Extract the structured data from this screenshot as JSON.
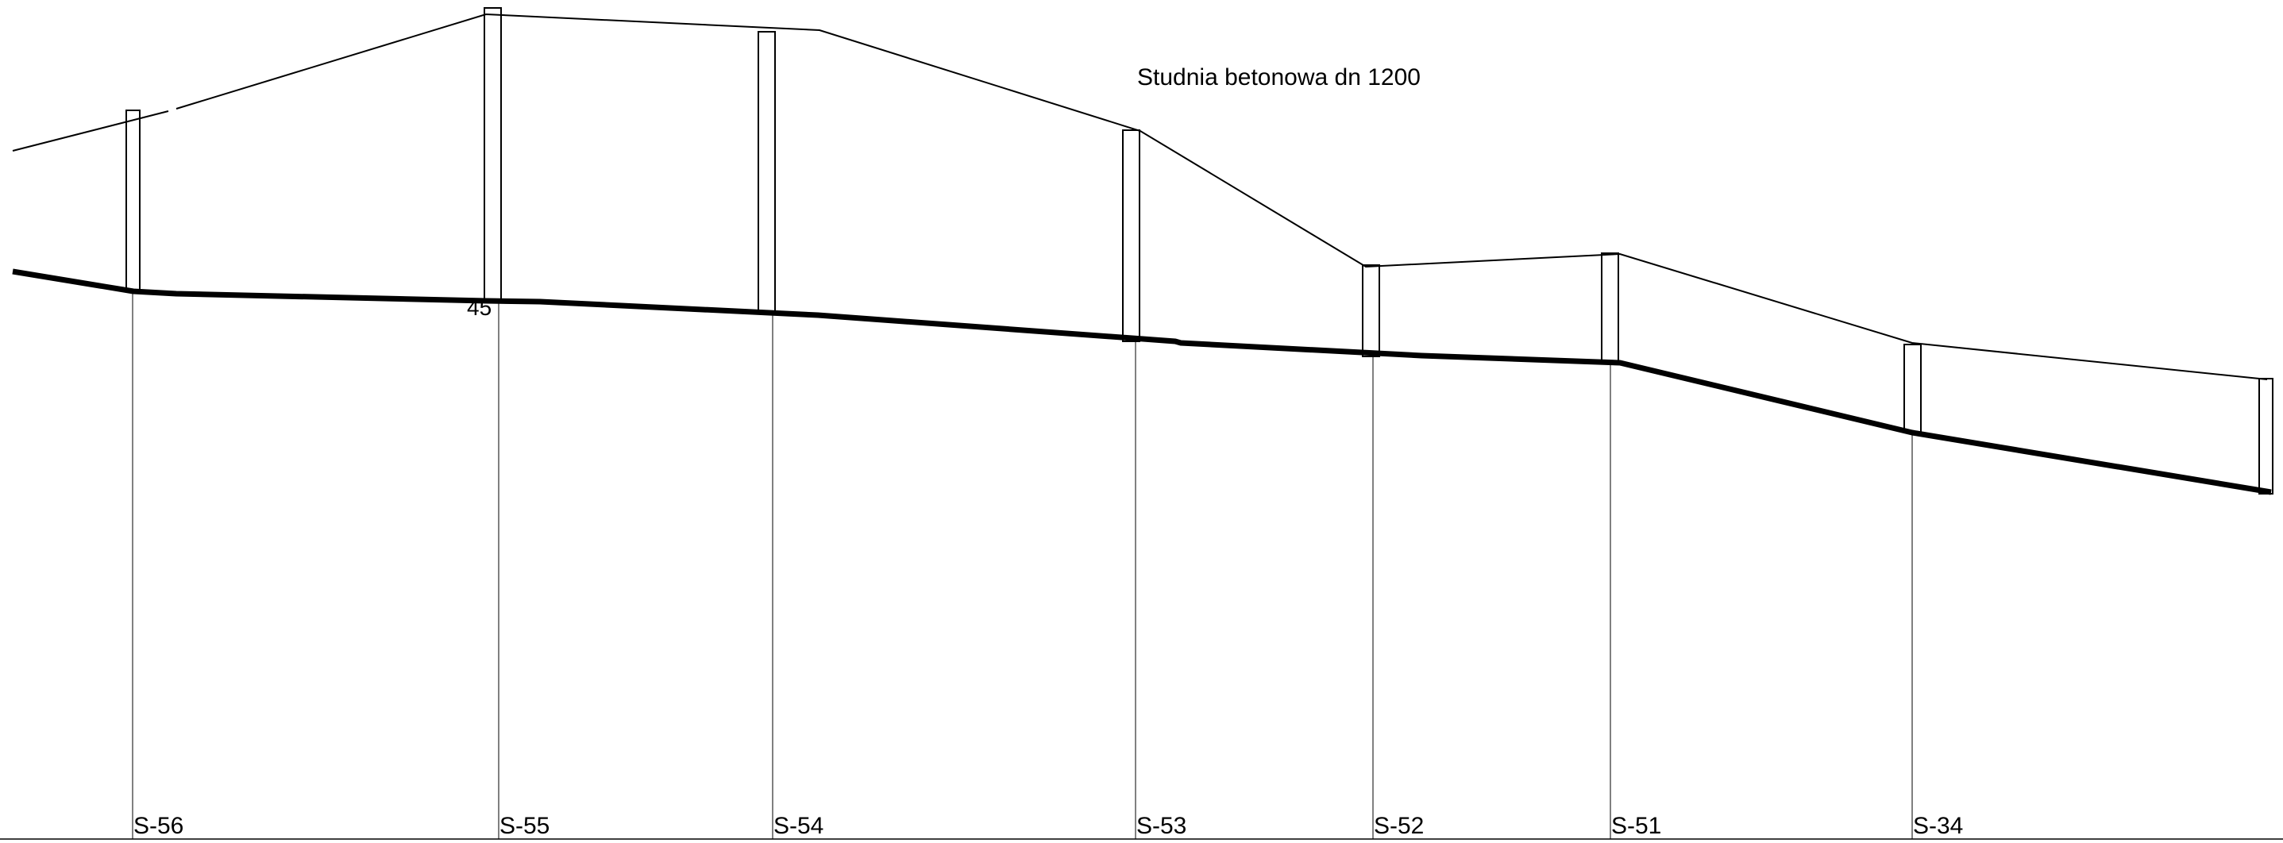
{
  "annotation": "Studnia  betonowa  dn 1200",
  "marker_number": "45",
  "wells": [
    {
      "label": "S-56"
    },
    {
      "label": "S-55"
    },
    {
      "label": "S-54"
    },
    {
      "label": "S-53"
    },
    {
      "label": "S-52"
    },
    {
      "label": "S-51"
    },
    {
      "label": "S-34"
    }
  ]
}
